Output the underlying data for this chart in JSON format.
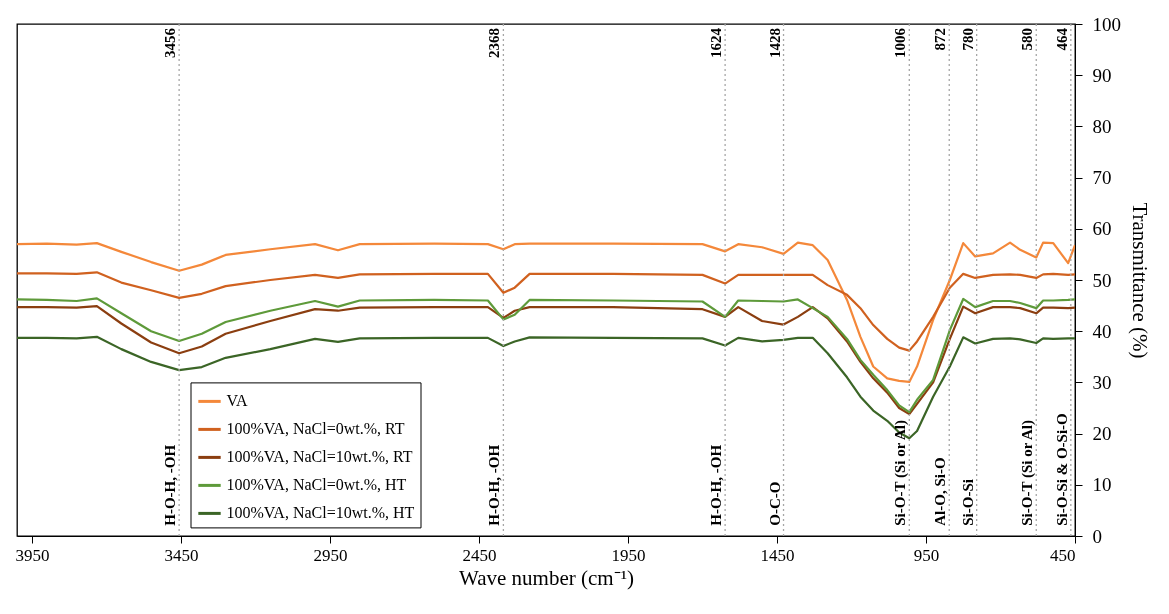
{
  "chart_data": {
    "type": "line",
    "xlabel": "Wave number (cm⁻¹)",
    "ylabel": "Transmittance (%)",
    "xlim": [
      4000,
      450
    ],
    "xticks": [
      3950,
      3450,
      2950,
      2450,
      1950,
      1450,
      950,
      450
    ],
    "ylim": [
      0,
      100
    ],
    "yticks": [
      0,
      10,
      20,
      30,
      40,
      50,
      60,
      70,
      80,
      90,
      100
    ],
    "legend": "bottom left",
    "x": [
      4000,
      3900,
      3800,
      3732,
      3650,
      3550,
      3456,
      3380,
      3300,
      3150,
      3000,
      2923,
      2850,
      2600,
      2420,
      2368,
      2330,
      2280,
      2000,
      1700,
      1624,
      1580,
      1500,
      1428,
      1380,
      1330,
      1280,
      1215,
      1170,
      1127,
      1080,
      1040,
      1006,
      980,
      926,
      870,
      825,
      785,
      725,
      668,
      634,
      580,
      557,
      523,
      473,
      450
    ],
    "series": [
      {
        "name": "VA",
        "color": "#f4883a",
        "values": [
          57.0,
          57.1,
          56.9,
          57.2,
          55.5,
          53.5,
          51.8,
          53.0,
          54.9,
          56.0,
          57.0,
          55.8,
          57.0,
          57.1,
          57.0,
          56.0,
          57.0,
          57.1,
          57.1,
          57.0,
          55.6,
          57.0,
          56.4,
          55.1,
          57.3,
          56.8,
          53.9,
          46.1,
          38.9,
          33.1,
          30.8,
          30.3,
          30.1,
          33.1,
          42.2,
          50.0,
          57.2,
          54.6,
          55.2,
          57.3,
          55.9,
          54.4,
          57.3,
          57.2,
          53.3,
          56.8
        ]
      },
      {
        "name": "100%VA, NaCl=0wt.%, RT",
        "color": "#d0611f",
        "values": [
          51.3,
          51.3,
          51.2,
          51.5,
          49.5,
          48.0,
          46.5,
          47.3,
          48.8,
          50.0,
          51.0,
          50.4,
          51.1,
          51.2,
          51.2,
          47.5,
          48.5,
          51.2,
          51.2,
          51.0,
          49.3,
          51.0,
          51.0,
          51.0,
          51.0,
          51.0,
          49.0,
          47.1,
          44.5,
          41.2,
          38.5,
          36.8,
          36.2,
          38.0,
          42.8,
          48.5,
          51.2,
          50.4,
          51.0,
          51.1,
          51.0,
          50.4,
          51.1,
          51.2,
          51.0,
          51.1
        ]
      },
      {
        "name": "100%VA, NaCl=10wt.%, RT",
        "color": "#8b3e10",
        "values": [
          44.7,
          44.7,
          44.6,
          44.9,
          41.5,
          37.8,
          35.7,
          37.0,
          39.5,
          42.0,
          44.3,
          44.0,
          44.6,
          44.7,
          44.7,
          42.6,
          44.0,
          44.7,
          44.7,
          44.3,
          42.8,
          44.7,
          42.0,
          41.3,
          42.8,
          44.7,
          42.5,
          38.0,
          34.0,
          30.8,
          28.0,
          25.0,
          23.8,
          25.8,
          30.0,
          38.5,
          44.8,
          43.5,
          44.7,
          44.7,
          44.5,
          43.5,
          44.6,
          44.6,
          44.5,
          44.6
        ]
      },
      {
        "name": "100%VA, NaCl=0wt.%, HT",
        "color": "#5e9a3a",
        "values": [
          46.2,
          46.1,
          45.9,
          46.4,
          43.5,
          40.0,
          38.1,
          39.5,
          41.8,
          44.0,
          45.9,
          44.8,
          46.0,
          46.1,
          46.0,
          42.3,
          43.2,
          46.1,
          46.0,
          45.8,
          42.8,
          46.0,
          45.9,
          45.8,
          46.2,
          44.5,
          42.8,
          38.5,
          34.4,
          31.5,
          28.5,
          25.5,
          24.2,
          26.6,
          30.5,
          40.2,
          46.3,
          44.7,
          45.9,
          45.9,
          45.5,
          44.5,
          46.0,
          46.0,
          46.1,
          46.2
        ]
      },
      {
        "name": "100%VA, NaCl=10wt.%, HT",
        "color": "#3b6526",
        "values": [
          38.7,
          38.7,
          38.6,
          38.9,
          36.5,
          34.0,
          32.4,
          33.0,
          34.8,
          36.5,
          38.5,
          37.9,
          38.6,
          38.7,
          38.7,
          37.1,
          38.0,
          38.8,
          38.7,
          38.6,
          37.2,
          38.7,
          38.0,
          38.3,
          38.7,
          38.7,
          35.7,
          31.0,
          27.2,
          24.5,
          22.5,
          20.2,
          19.1,
          20.5,
          27.2,
          33.1,
          38.8,
          37.6,
          38.5,
          38.6,
          38.4,
          37.7,
          38.6,
          38.5,
          38.6,
          38.6
        ]
      }
    ],
    "ref_lines": [
      {
        "axis": "x",
        "value": 3456,
        "label": "3456",
        "color": "#a6a6a6",
        "line_style": "dotted"
      },
      {
        "axis": "x",
        "value": 2368,
        "label": "2368",
        "color": "#a6a6a6",
        "line_style": "dotted"
      },
      {
        "axis": "x",
        "value": 1624,
        "label": "1624",
        "color": "#a6a6a6",
        "line_style": "dotted"
      },
      {
        "axis": "x",
        "value": 1428,
        "label": "1428",
        "color": "#a6a6a6",
        "line_style": "dotted"
      },
      {
        "axis": "x",
        "value": 1006,
        "label": "1006",
        "color": "#a6a6a6",
        "line_style": "dotted"
      },
      {
        "axis": "x",
        "value": 872,
        "label": "872",
        "color": "#a6a6a6",
        "line_style": "dotted"
      },
      {
        "axis": "x",
        "value": 780,
        "label": "780",
        "color": "#a6a6a6",
        "line_style": "dotted"
      },
      {
        "axis": "x",
        "value": 580,
        "label": "580",
        "color": "#a6a6a6",
        "line_style": "dotted"
      },
      {
        "axis": "x",
        "value": 464,
        "label": "464",
        "color": "#a6a6a6",
        "line_style": "dotted"
      }
    ],
    "annotations": [
      {
        "text": "H-O-H, -OH",
        "x": 3456,
        "y": 2
      },
      {
        "text": "H-O-H, -OH",
        "x": 2368,
        "y": 2
      },
      {
        "text": "H-O-H, -OH",
        "x": 1624,
        "y": 2
      },
      {
        "text": "O-C-O",
        "x": 1428,
        "y": 2
      },
      {
        "text": "Si-O-T (Si or Al)",
        "x": 1006,
        "y": 2
      },
      {
        "text": "Al-O, Si-O",
        "x": 872,
        "y": 2
      },
      {
        "text": "Si-O-Si",
        "x": 780,
        "y": 2
      },
      {
        "text": "Si-O-T (Si or Al)",
        "x": 580,
        "y": 2
      },
      {
        "text": "Si-O-Si & O-Si-O",
        "x": 464,
        "y": 2
      }
    ]
  }
}
